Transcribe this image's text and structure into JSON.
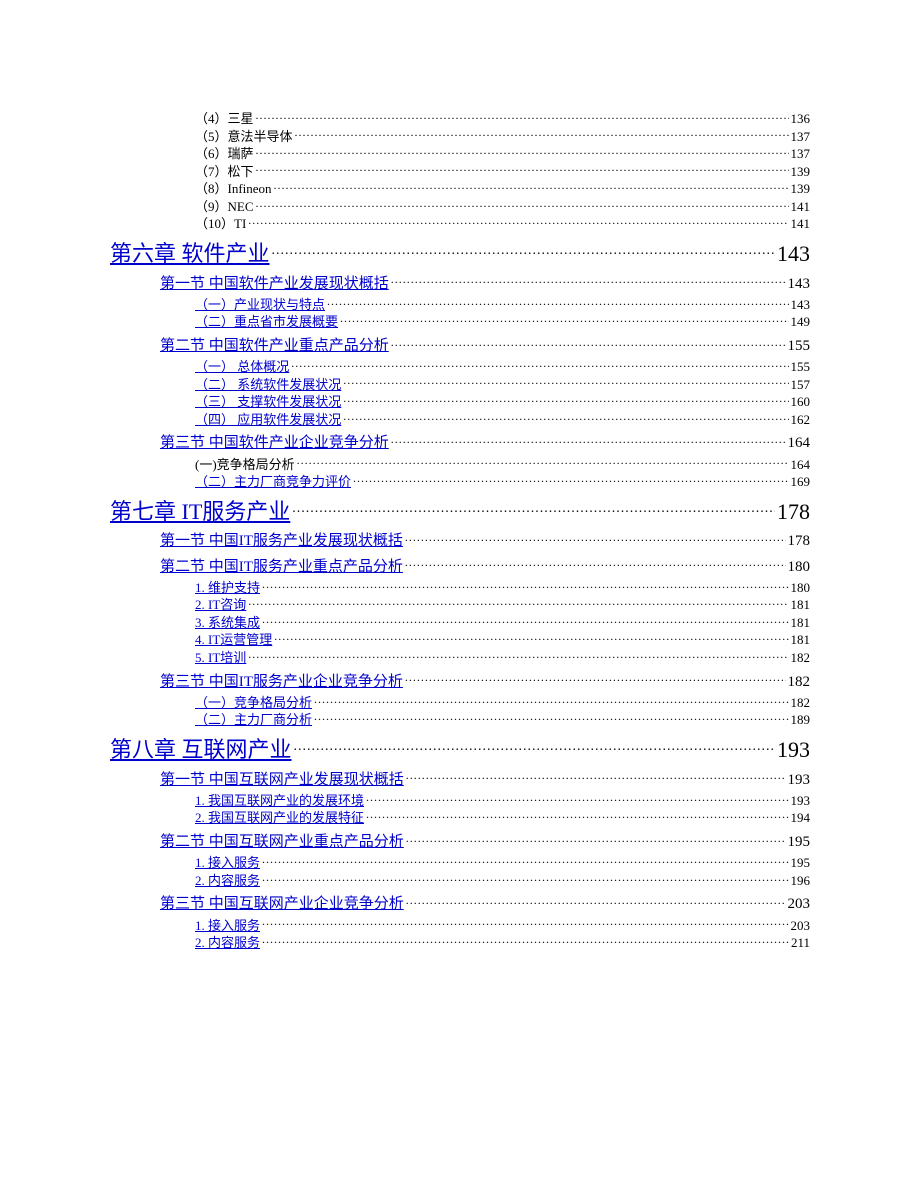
{
  "colors": {
    "link": "#0000cc",
    "text": "#000000",
    "background": "#ffffff"
  },
  "typography": {
    "font_family": "SimSun",
    "sizes_pt": {
      "lvl0": 10,
      "lvl1": 16,
      "lvl2": 12,
      "lvl3": 10
    }
  },
  "entries": [
    {
      "level": 0,
      "label": "（4）三星",
      "page": "136",
      "link": false
    },
    {
      "level": 0,
      "label": "（5）意法半导体",
      "page": "137",
      "link": false
    },
    {
      "level": 0,
      "label": "（6）瑞萨",
      "page": "137",
      "link": false
    },
    {
      "level": 0,
      "label": "（7）松下",
      "page": "139",
      "link": false
    },
    {
      "level": 0,
      "label": "（8）Infineon",
      "page": "139",
      "link": false
    },
    {
      "level": 0,
      "label": "（9）NEC",
      "page": "141",
      "link": false
    },
    {
      "level": 0,
      "label": "（10）TI",
      "page": "141",
      "link": false
    },
    {
      "level": 1,
      "label": "第六章 软件产业",
      "page": "143",
      "link": true
    },
    {
      "level": 2,
      "label": "第一节 中国软件产业发展现状概括",
      "page": "143",
      "link": true
    },
    {
      "level": 3,
      "label": "（一）产业现状与特点",
      "page": "143",
      "link": true
    },
    {
      "level": 3,
      "label": "（二）重点省市发展概要",
      "page": "149",
      "link": true
    },
    {
      "level": 2,
      "label": "第二节 中国软件产业重点产品分析",
      "page": "155",
      "link": true
    },
    {
      "level": 3,
      "label": "（一） 总体概况",
      "page": "155",
      "link": true
    },
    {
      "level": 3,
      "label": "（二） 系统软件发展状况",
      "page": "157",
      "link": true
    },
    {
      "level": 3,
      "label": "（三） 支撑软件发展状况",
      "page": "160",
      "link": true
    },
    {
      "level": 3,
      "label": "（四） 应用软件发展状况",
      "page": "162",
      "link": true
    },
    {
      "level": 2,
      "label": "第三节 中国软件产业企业竞争分析",
      "page": "164",
      "link": true
    },
    {
      "level": 3,
      "label": "(一)竞争格局分析",
      "page": "164",
      "link": false
    },
    {
      "level": 3,
      "label": "（二）主力厂商竞争力评价",
      "page": "169",
      "link": true
    },
    {
      "level": 1,
      "label": "第七章 IT服务产业",
      "page": "178",
      "link": true
    },
    {
      "level": 2,
      "label": "第一节 中国IT服务产业发展现状概括",
      "page": "178",
      "link": true
    },
    {
      "level": 2,
      "label": "第二节 中国IT服务产业重点产品分析",
      "page": "180",
      "link": true
    },
    {
      "level": 3,
      "label": "1. 维护支持",
      "page": "180",
      "link": true
    },
    {
      "level": 3,
      "label": "2.  IT咨询",
      "page": "181",
      "link": true
    },
    {
      "level": 3,
      "label": "3. 系统集成",
      "page": "181",
      "link": true
    },
    {
      "level": 3,
      "label": "4.  IT运营管理",
      "page": "181",
      "link": true
    },
    {
      "level": 3,
      "label": "5.  IT培训",
      "page": "182",
      "link": true
    },
    {
      "level": 2,
      "label": "第三节 中国IT服务产业企业竞争分析",
      "page": "182",
      "link": true
    },
    {
      "level": 3,
      "label": "（一）竞争格局分析",
      "page": "182",
      "link": true
    },
    {
      "level": 3,
      "label": "（二）主力厂商分析",
      "page": "189",
      "link": true
    },
    {
      "level": 1,
      "label": "第八章 互联网产业",
      "page": "193",
      "link": true
    },
    {
      "level": 2,
      "label": "第一节 中国互联网产业发展现状概括",
      "page": "193",
      "link": true
    },
    {
      "level": 3,
      "label": "1. 我国互联网产业的发展环境",
      "page": "193",
      "link": true
    },
    {
      "level": 3,
      "label": "2. 我国互联网产业的发展特征",
      "page": "194",
      "link": true
    },
    {
      "level": 2,
      "label": "第二节 中国互联网产业重点产品分析",
      "page": "195",
      "link": true
    },
    {
      "level": 3,
      "label": "1. 接入服务",
      "page": "195",
      "link": true
    },
    {
      "level": 3,
      "label": "2. 内容服务",
      "page": "196",
      "link": true
    },
    {
      "level": 2,
      "label": "第三节 中国互联网产业企业竞争分析",
      "page": "203",
      "link": true
    },
    {
      "level": 3,
      "label": "1. 接入服务",
      "page": "203",
      "link": true
    },
    {
      "level": 3,
      "label": "2. 内容服务",
      "page": "211",
      "link": true
    }
  ]
}
